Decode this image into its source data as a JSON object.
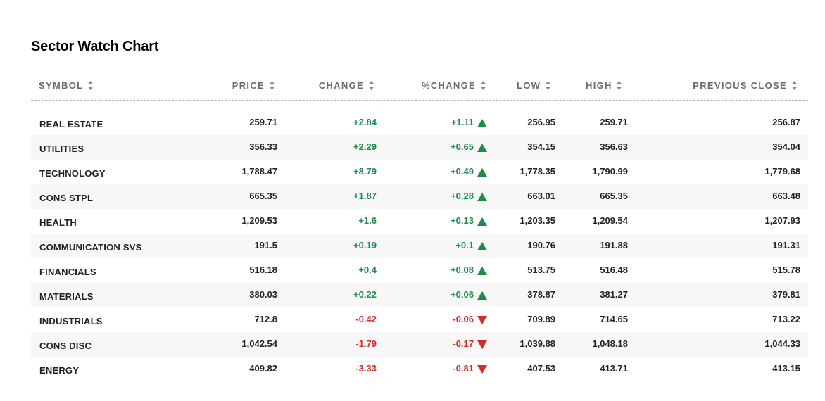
{
  "page_title": "Sector Watch Chart",
  "colors": {
    "positive": "#1e8a4c",
    "negative": "#d12b2b",
    "header_text": "#6b6b6b",
    "row_alt_bg": "#f7f7f7"
  },
  "columns": [
    {
      "key": "symbol",
      "label": "SYMBOL",
      "icon": "sort-icon"
    },
    {
      "key": "price",
      "label": "PRICE",
      "icon": "sort-icon"
    },
    {
      "key": "change",
      "label": "CHANGE",
      "icon": "sort-icon"
    },
    {
      "key": "pct_change",
      "label": "%CHANGE",
      "icon": "sort-icon"
    },
    {
      "key": "low",
      "label": "LOW",
      "icon": "sort-icon"
    },
    {
      "key": "high",
      "label": "HIGH",
      "icon": "sort-icon"
    },
    {
      "key": "previous_close",
      "label": "PREVIOUS CLOSE",
      "icon": "sort-icon"
    }
  ],
  "rows": [
    {
      "symbol": "REAL ESTATE",
      "price": "259.71",
      "change": "+2.84",
      "pct_change": "+1.11",
      "direction": "up",
      "low": "256.95",
      "high": "259.71",
      "previous_close": "256.87"
    },
    {
      "symbol": "UTILITIES",
      "price": "356.33",
      "change": "+2.29",
      "pct_change": "+0.65",
      "direction": "up",
      "low": "354.15",
      "high": "356.63",
      "previous_close": "354.04"
    },
    {
      "symbol": "TECHNOLOGY",
      "price": "1,788.47",
      "change": "+8.79",
      "pct_change": "+0.49",
      "direction": "up",
      "low": "1,778.35",
      "high": "1,790.99",
      "previous_close": "1,779.68"
    },
    {
      "symbol": "CONS STPL",
      "price": "665.35",
      "change": "+1.87",
      "pct_change": "+0.28",
      "direction": "up",
      "low": "663.01",
      "high": "665.35",
      "previous_close": "663.48"
    },
    {
      "symbol": "HEALTH",
      "price": "1,209.53",
      "change": "+1.6",
      "pct_change": "+0.13",
      "direction": "up",
      "low": "1,203.35",
      "high": "1,209.54",
      "previous_close": "1,207.93"
    },
    {
      "symbol": "COMMUNICATION SVS",
      "price": "191.5",
      "change": "+0.19",
      "pct_change": "+0.1",
      "direction": "up",
      "low": "190.76",
      "high": "191.88",
      "previous_close": "191.31"
    },
    {
      "symbol": "FINANCIALS",
      "price": "516.18",
      "change": "+0.4",
      "pct_change": "+0.08",
      "direction": "up",
      "low": "513.75",
      "high": "516.48",
      "previous_close": "515.78"
    },
    {
      "symbol": "MATERIALS",
      "price": "380.03",
      "change": "+0.22",
      "pct_change": "+0.06",
      "direction": "up",
      "low": "378.87",
      "high": "381.27",
      "previous_close": "379.81"
    },
    {
      "symbol": "INDUSTRIALS",
      "price": "712.8",
      "change": "-0.42",
      "pct_change": "-0.06",
      "direction": "down",
      "low": "709.89",
      "high": "714.65",
      "previous_close": "713.22"
    },
    {
      "symbol": "CONS DISC",
      "price": "1,042.54",
      "change": "-1.79",
      "pct_change": "-0.17",
      "direction": "down",
      "low": "1,039.88",
      "high": "1,048.18",
      "previous_close": "1,044.33"
    },
    {
      "symbol": "ENERGY",
      "price": "409.82",
      "change": "-3.33",
      "pct_change": "-0.81",
      "direction": "down",
      "low": "407.53",
      "high": "413.71",
      "previous_close": "413.15"
    }
  ]
}
